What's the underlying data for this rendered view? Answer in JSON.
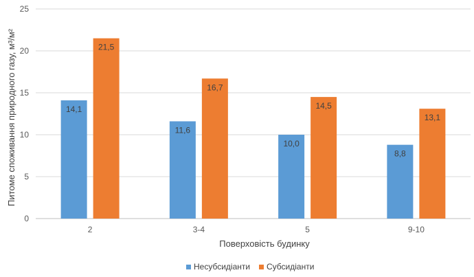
{
  "chart_data": {
    "type": "bar",
    "categories": [
      "2",
      "3-4",
      "5",
      "9-10"
    ],
    "series": [
      {
        "name": "Несубсидіанти",
        "values": [
          14.1,
          11.6,
          10.0,
          8.8
        ],
        "labels": [
          "14,1",
          "11,6",
          "10,0",
          "8,8"
        ],
        "color": "#5b9bd5"
      },
      {
        "name": "Субсидіанти",
        "values": [
          21.5,
          16.7,
          14.5,
          13.1
        ],
        "labels": [
          "21,5",
          "16,7",
          "14,5",
          "13,1"
        ],
        "color": "#ed7d31"
      }
    ],
    "xlabel": "Поверховість будинку",
    "ylabel": "Питоме споживання природного газу, м³/м²",
    "ylim": [
      0,
      25
    ],
    "yticks": [
      0,
      5,
      10,
      15,
      20,
      25
    ],
    "grid": true,
    "legend_position": "bottom"
  }
}
